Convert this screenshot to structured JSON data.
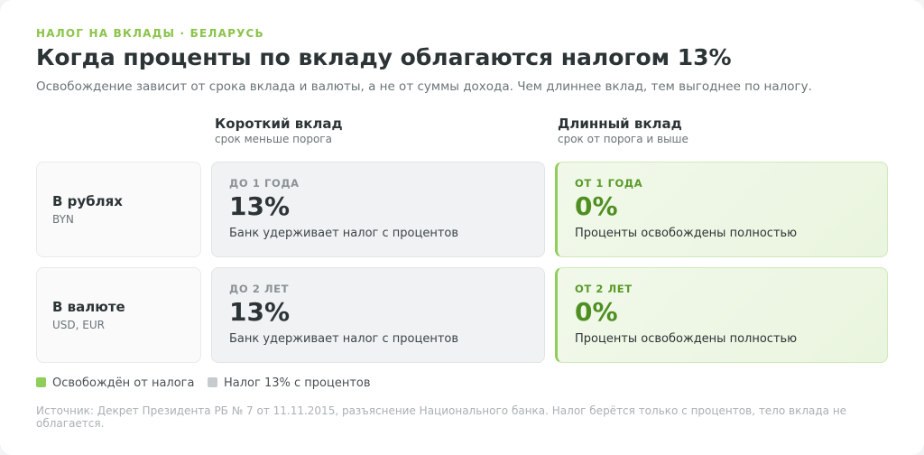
{
  "header": {
    "eyebrow": "НАЛОГ НА ВКЛАДЫ · БЕЛАРУСЬ",
    "title": "Когда проценты по вкладу облагаются налогом 13%",
    "subtitle": "Освобождение зависит от срока вклада и валюты, а не от суммы дохода. Чем длиннее вклад, тем выгоднее по налогу."
  },
  "columns": [
    {
      "title": "Короткий вклад",
      "sub": "срок меньше порога"
    },
    {
      "title": "Длинный вклад",
      "sub": "срок от порога и выше"
    }
  ],
  "rows": [
    {
      "label": "В рублях",
      "sub": "BYN",
      "cells": [
        {
          "tag": "ДО 1 ГОДА",
          "value": "13%",
          "desc": "Банк удерживает налог с процентов"
        },
        {
          "tag": "ОТ 1 ГОДА",
          "value": "0%",
          "desc": "Проценты освобождены полностью"
        }
      ]
    },
    {
      "label": "В валюте",
      "sub": "USD, EUR",
      "cells": [
        {
          "tag": "ДО 2 ЛЕТ",
          "value": "13%",
          "desc": "Банк удерживает налог с процентов"
        },
        {
          "tag": "ОТ 2 ЛЕТ",
          "value": "0%",
          "desc": "Проценты освобождены полностью"
        }
      ]
    }
  ],
  "legend": [
    {
      "label": "Освобождён от налога",
      "color": "#8fce5a"
    },
    {
      "label": "Налог 13% с процентов",
      "color": "#c6cbce"
    }
  ],
  "source": "Источник: Декрет Президента РБ № 7 от 11.11.2015, разъяснение Национального банка. Налог берётся только с процентов, тело вклада не облагается."
}
